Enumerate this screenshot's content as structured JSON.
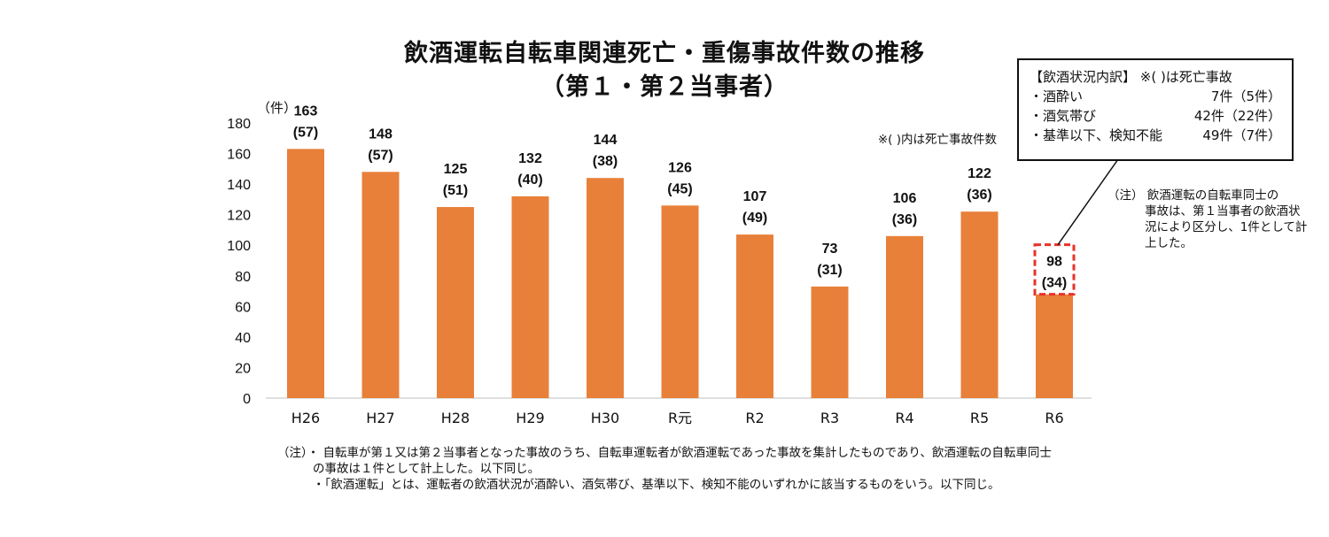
{
  "title_line1": "飲酒運転自転車関連死亡・重傷事故件数の推移",
  "title_line2": "（第１・第２当事者）",
  "y_unit": "（件）",
  "legend_note": "※(  )内は死亡事故件数",
  "chart_data": {
    "type": "bar",
    "categories": [
      "H26",
      "H27",
      "H28",
      "H29",
      "H30",
      "R元",
      "R2",
      "R3",
      "R4",
      "R5",
      "R6"
    ],
    "values": [
      163,
      148,
      125,
      132,
      144,
      126,
      107,
      73,
      106,
      122,
      98
    ],
    "fatal": [
      "(57)",
      "(57)",
      "(51)",
      "(40)",
      "(38)",
      "(45)",
      "(49)",
      "(31)",
      "(36)",
      "(36)",
      "(34)"
    ],
    "yticks": [
      "0",
      "20",
      "40",
      "60",
      "80",
      "100",
      "120",
      "140",
      "160",
      "180"
    ],
    "ylim": [
      0,
      180
    ],
    "bar_color": "#E8803A",
    "highlight_color": "#E8322A",
    "highlight_index": 10
  },
  "callout": {
    "header": "【飲酒状況内訳】 ※(  )は死亡事故",
    "rows": [
      {
        "label": "・酒酔い",
        "value": "7件（5件）"
      },
      {
        "label": "・酒気帯び",
        "value": "42件（22件）"
      },
      {
        "label": "・基準以下、検知不能",
        "value": "49件（7件）"
      }
    ]
  },
  "side_note": {
    "line1": "（注） 飲酒運転の自転車同士の",
    "line2": "事故は、第１当事者の飲酒状",
    "line3": "況により区分し、1件として計",
    "line4": "上した。"
  },
  "footnotes": {
    "line1": "（注）・ 自転車が第１又は第２当事者となった事故のうち、自転車運転者が飲酒運転であった事故を集計したものであり、飲酒運転の自転車同士",
    "line2": "の事故は１件として計上した。以下同じ。",
    "line3": "・「飲酒運転」とは、運転者の飲酒状況が酒酔い、酒気帯び、基準以下、検知不能のいずれかに該当するものをいう。以下同じ。"
  }
}
